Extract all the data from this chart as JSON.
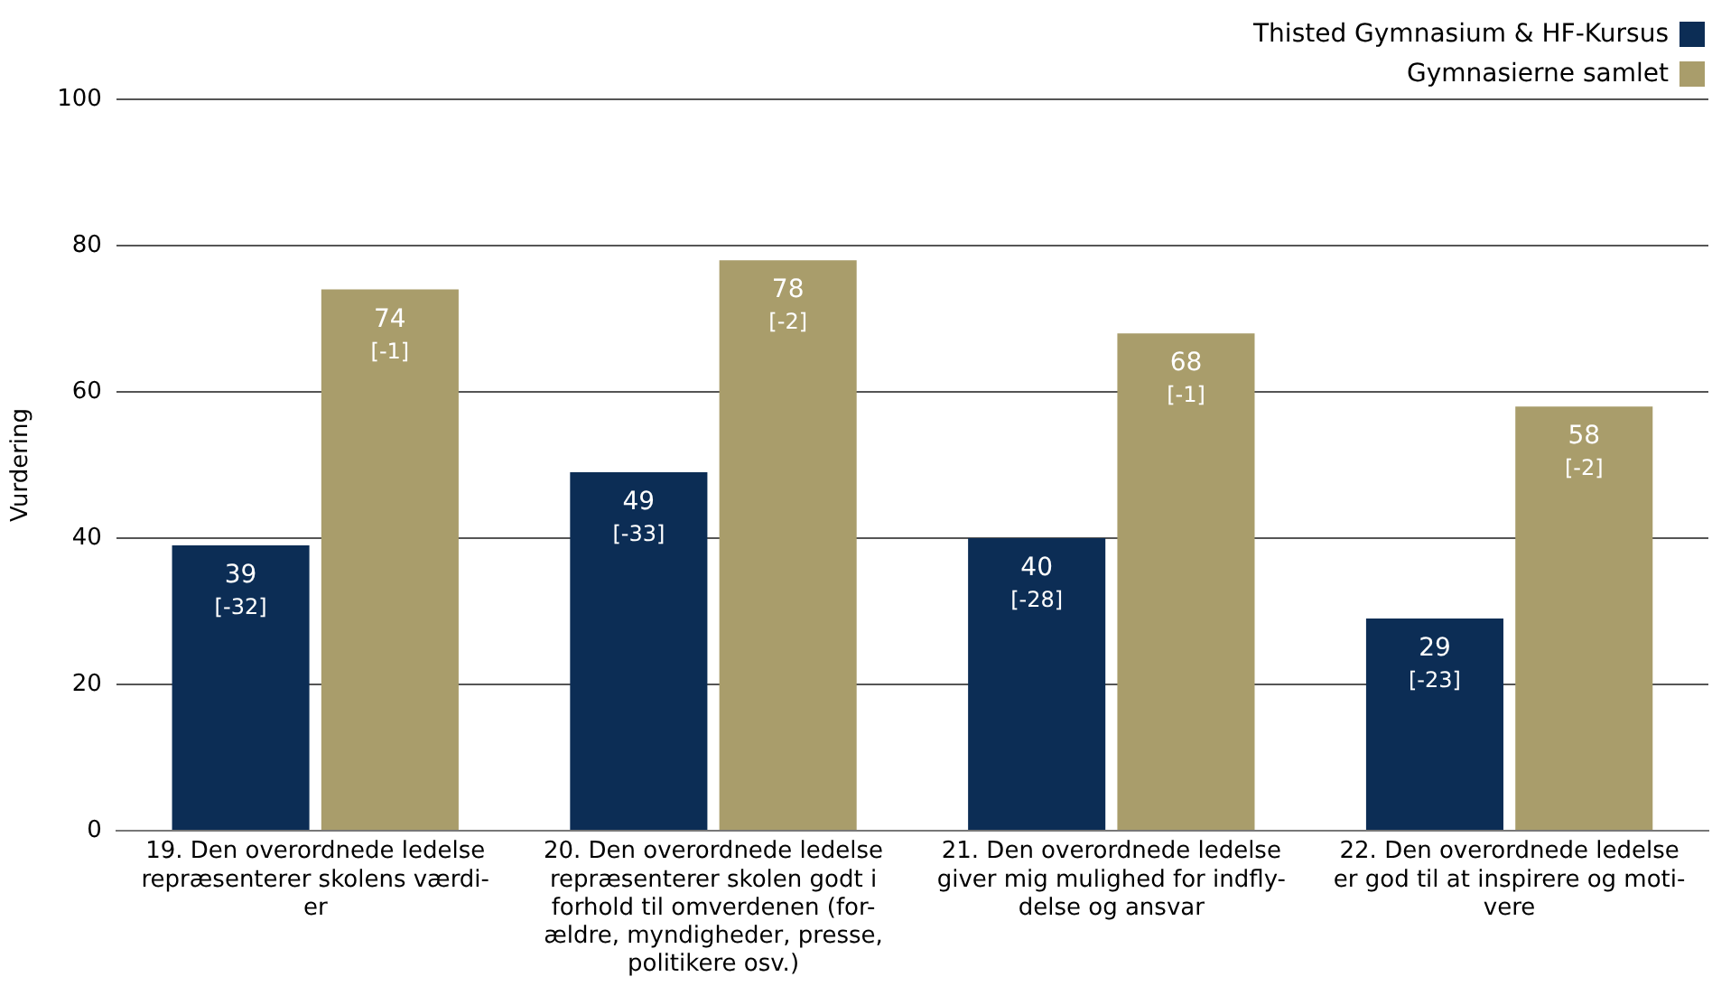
{
  "chart_data": {
    "type": "bar",
    "ylabel": "Vurdering",
    "categories": [
      "19. Den overordnede ledelse\nrepræsenterer skolens værdi-\ner",
      "20. Den overordnede ledelse\nrepræsenterer skolen godt i\nforhold til omverdenen (for-\nældre, myndigheder, presse,\npolitikere osv.)",
      "21. Den overordnede ledelse\ngiver mig mulighed for indfly-\ndelse og ansvar",
      "22. Den overordnede ledelse\ner god til at inspirere og moti-\nvere"
    ],
    "series": [
      {
        "name": "Thisted Gymnasium & HF-Kursus",
        "color": "#0c2d55",
        "values": [
          39,
          49,
          40,
          29
        ],
        "value_labels": [
          "39\n[-32]",
          "49\n[-33]",
          "40\n[-28]",
          "29\n[-23]"
        ]
      },
      {
        "name": "Gymnasierne samlet",
        "color": "#a99d6b",
        "values": [
          74,
          78,
          68,
          58
        ],
        "value_labels": [
          "74\n[-1]",
          "78\n[-2]",
          "68\n[-1]",
          "58\n[-2]"
        ]
      }
    ],
    "ylim": [
      0,
      100
    ],
    "yticks": [
      0,
      20,
      40,
      60,
      80,
      100
    ],
    "grid": "y",
    "legend": "top right"
  }
}
